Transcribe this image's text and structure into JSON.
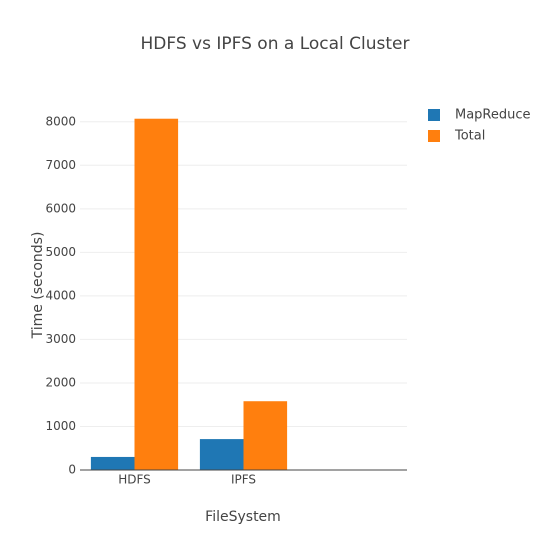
{
  "chart_data": {
    "type": "bar",
    "title": "HDFS vs IPFS on a Local Cluster",
    "x_label": "FileSystem",
    "y_label": "Time (seconds)",
    "categories": [
      "HDFS",
      "IPFS",
      null
    ],
    "series": [
      {
        "name": "MapReduce",
        "color": "#1f77b4",
        "values": [
          300,
          710,
          null
        ]
      },
      {
        "name": "Total",
        "color": "#ff7f0e",
        "values": [
          8070,
          1580,
          null
        ]
      }
    ],
    "ylim": [
      0,
      8500
    ],
    "yticks": [
      0,
      1000,
      2000,
      3000,
      4000,
      5000,
      6000,
      7000,
      8000
    ],
    "grid": true,
    "legend": "top-right"
  }
}
